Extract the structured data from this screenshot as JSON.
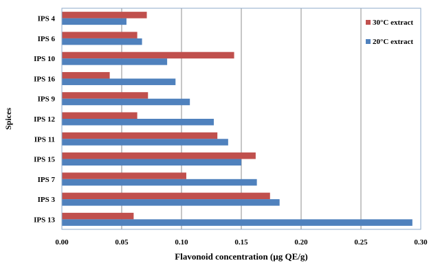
{
  "chart_data": {
    "type": "bar",
    "orientation": "horizontal",
    "title": "",
    "xlabel": "Flavonoid concentration (µg QE/g)",
    "ylabel": "Spices",
    "xlim": [
      0,
      0.3
    ],
    "x_ticks": [
      "0.00",
      "0.05",
      "0.10",
      "0.15",
      "0.20",
      "0.25",
      "0.30"
    ],
    "x_tick_values": [
      0,
      0.05,
      0.1,
      0.15,
      0.2,
      0.25,
      0.3
    ],
    "grid": "vertical",
    "legend_position": "top-right",
    "categories": [
      "IPS 4",
      "IPS 6",
      "IPS 10",
      "IPS 16",
      "IPS 9",
      "IPS 12",
      "IPS 11",
      "IPS 15",
      "IPS 7",
      "IPS 3",
      "IPS 13"
    ],
    "series": [
      {
        "name": "30°C extract",
        "color": "#C0504D",
        "values": [
          0.071,
          0.063,
          0.144,
          0.04,
          0.072,
          0.063,
          0.13,
          0.162,
          0.104,
          0.174,
          0.06
        ]
      },
      {
        "name": "20°C extract",
        "color": "#4F81BD",
        "values": [
          0.054,
          0.067,
          0.088,
          0.095,
          0.107,
          0.127,
          0.139,
          0.15,
          0.163,
          0.182,
          0.293
        ]
      }
    ]
  }
}
